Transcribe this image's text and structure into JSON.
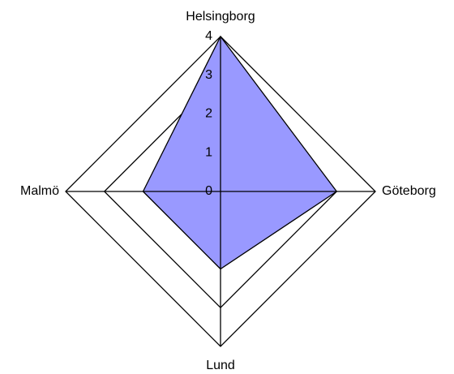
{
  "chart_data": {
    "type": "radar",
    "categories": [
      "Helsingborg",
      "Göteborg",
      "Lund",
      "Malmö"
    ],
    "values": [
      4,
      3,
      2,
      2
    ],
    "color": "#9999ff",
    "ylim": [
      0,
      4
    ],
    "yticks": [
      0,
      1,
      2,
      3,
      4
    ],
    "grid": true
  }
}
